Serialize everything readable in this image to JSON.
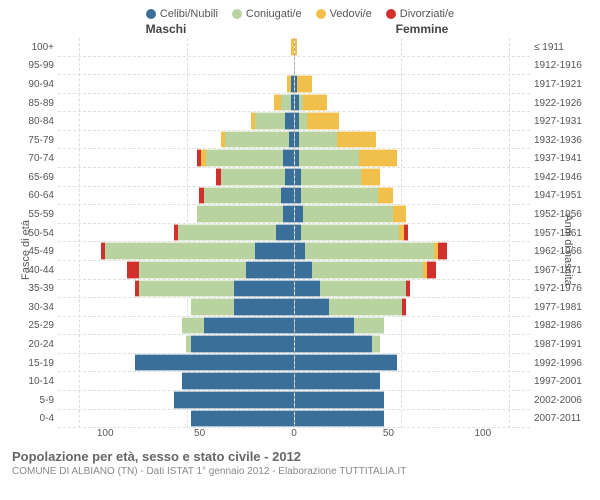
{
  "legend": [
    {
      "label": "Celibi/Nubili",
      "color": "#3a6f9a"
    },
    {
      "label": "Coniugati/e",
      "color": "#b8d2a0"
    },
    {
      "label": "Vedovi/e",
      "color": "#f0c04a"
    },
    {
      "label": "Divorziati/e",
      "color": "#d0312d"
    }
  ],
  "column_headers": {
    "left": "Maschi",
    "right": "Femmine"
  },
  "axis_labels": {
    "left": "Fasce di età",
    "right": "Anni di nascita"
  },
  "x_ticks": [
    "100",
    "50",
    "0",
    "50",
    "100"
  ],
  "x_max": 110,
  "grid_positions_pct": [
    4.5,
    27.3,
    50,
    72.7,
    95.5
  ],
  "rows": [
    {
      "age": "100+",
      "birth": "≤ 1911",
      "m": [
        0,
        0,
        1,
        0
      ],
      "f": [
        0,
        0,
        1,
        0
      ]
    },
    {
      "age": "95-99",
      "birth": "1912-1916",
      "m": [
        0,
        0,
        0,
        0
      ],
      "f": [
        0,
        0,
        0,
        0
      ]
    },
    {
      "age": "90-94",
      "birth": "1917-1921",
      "m": [
        1,
        0,
        2,
        0
      ],
      "f": [
        1,
        0,
        7,
        0
      ]
    },
    {
      "age": "85-89",
      "birth": "1922-1926",
      "m": [
        1,
        5,
        3,
        0
      ],
      "f": [
        2,
        2,
        11,
        0
      ]
    },
    {
      "age": "80-84",
      "birth": "1927-1931",
      "m": [
        4,
        14,
        2,
        0
      ],
      "f": [
        2,
        4,
        15,
        0
      ]
    },
    {
      "age": "75-79",
      "birth": "1932-1936",
      "m": [
        2,
        30,
        2,
        0
      ],
      "f": [
        2,
        18,
        18,
        0
      ]
    },
    {
      "age": "70-74",
      "birth": "1937-1941",
      "m": [
        5,
        36,
        2,
        2
      ],
      "f": [
        2,
        28,
        18,
        0
      ]
    },
    {
      "age": "65-69",
      "birth": "1942-1946",
      "m": [
        4,
        30,
        0,
        2
      ],
      "f": [
        3,
        28,
        9,
        0
      ]
    },
    {
      "age": "60-64",
      "birth": "1947-1951",
      "m": [
        6,
        36,
        0,
        2
      ],
      "f": [
        3,
        36,
        7,
        0
      ]
    },
    {
      "age": "55-59",
      "birth": "1952-1956",
      "m": [
        5,
        40,
        0,
        0
      ],
      "f": [
        4,
        42,
        6,
        0
      ]
    },
    {
      "age": "50-54",
      "birth": "1957-1961",
      "m": [
        8,
        46,
        0,
        2
      ],
      "f": [
        3,
        46,
        2,
        2
      ]
    },
    {
      "age": "45-49",
      "birth": "1962-1966",
      "m": [
        18,
        70,
        0,
        2
      ],
      "f": [
        5,
        60,
        2,
        4
      ]
    },
    {
      "age": "40-44",
      "birth": "1967-1971",
      "m": [
        22,
        50,
        0,
        6
      ],
      "f": [
        8,
        52,
        2,
        4
      ]
    },
    {
      "age": "35-39",
      "birth": "1972-1976",
      "m": [
        28,
        44,
        0,
        2
      ],
      "f": [
        12,
        40,
        0,
        2
      ]
    },
    {
      "age": "30-34",
      "birth": "1977-1981",
      "m": [
        28,
        20,
        0,
        0
      ],
      "f": [
        16,
        34,
        0,
        2
      ]
    },
    {
      "age": "25-29",
      "birth": "1982-1986",
      "m": [
        42,
        10,
        0,
        0
      ],
      "f": [
        28,
        14,
        0,
        0
      ]
    },
    {
      "age": "20-24",
      "birth": "1987-1991",
      "m": [
        48,
        2,
        0,
        0
      ],
      "f": [
        36,
        4,
        0,
        0
      ]
    },
    {
      "age": "15-19",
      "birth": "1992-1996",
      "m": [
        74,
        0,
        0,
        0
      ],
      "f": [
        48,
        0,
        0,
        0
      ]
    },
    {
      "age": "10-14",
      "birth": "1997-2001",
      "m": [
        52,
        0,
        0,
        0
      ],
      "f": [
        40,
        0,
        0,
        0
      ]
    },
    {
      "age": "5-9",
      "birth": "2002-2006",
      "m": [
        56,
        0,
        0,
        0
      ],
      "f": [
        42,
        0,
        0,
        0
      ]
    },
    {
      "age": "0-4",
      "birth": "2007-2011",
      "m": [
        48,
        0,
        0,
        0
      ],
      "f": [
        42,
        0,
        0,
        0
      ]
    }
  ],
  "colors": {
    "celibi": "#3a6f9a",
    "coniugati": "#b8d2a0",
    "vedovi": "#f0c04a",
    "divorziati": "#d0312d",
    "grid": "#e0e0e0",
    "center": "#aaaaaa"
  },
  "footer": {
    "title": "Popolazione per età, sesso e stato civile - 2012",
    "subtitle": "COMUNE DI ALBIANO (TN) - Dati ISTAT 1° gennaio 2012 - Elaborazione TUTTITALIA.IT"
  }
}
